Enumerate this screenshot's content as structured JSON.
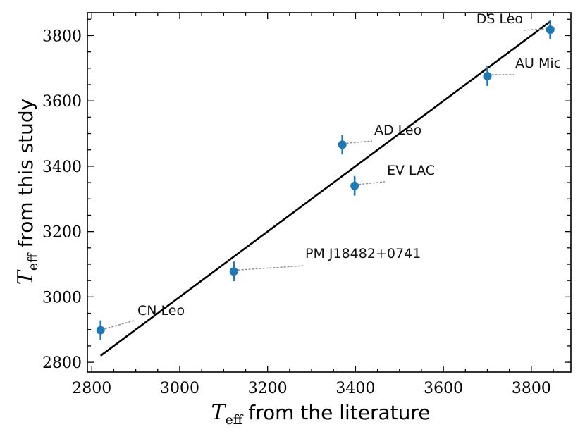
{
  "chart_data": {
    "type": "scatter",
    "title": "",
    "xlabel": {
      "symbol": "T",
      "subscript": "eff",
      "text": "from the literature"
    },
    "ylabel": {
      "symbol": "T",
      "subscript": "eff",
      "text": "from this study"
    },
    "xlim": [
      2790,
      3890
    ],
    "ylim": [
      2770,
      3870
    ],
    "xticks": [
      2800,
      3000,
      3200,
      3400,
      3600,
      3800
    ],
    "yticks": [
      2800,
      3000,
      3200,
      3400,
      3600,
      3800
    ],
    "grid": false,
    "legend": "none",
    "point_color": "#1f77b4",
    "line_color": "#000000",
    "leader_color": "#888888",
    "points": [
      {
        "name": "CN Leo",
        "x": 2820,
        "y": 2898,
        "yerr": 30
      },
      {
        "name": "PM J18482+0741",
        "x": 3123,
        "y": 3078,
        "yerr": 30
      },
      {
        "name": "AD Leo",
        "x": 3370,
        "y": 3466,
        "yerr": 30
      },
      {
        "name": "EV LAC",
        "x": 3398,
        "y": 3340,
        "yerr": 30
      },
      {
        "name": "AU Mic",
        "x": 3700,
        "y": 3676,
        "yerr": 30
      },
      {
        "name": "DS Leo",
        "x": 3843,
        "y": 3818,
        "yerr": 30
      }
    ],
    "fit_line": {
      "x": [
        2820,
        3843
      ],
      "y": [
        2820,
        3843
      ]
    }
  }
}
